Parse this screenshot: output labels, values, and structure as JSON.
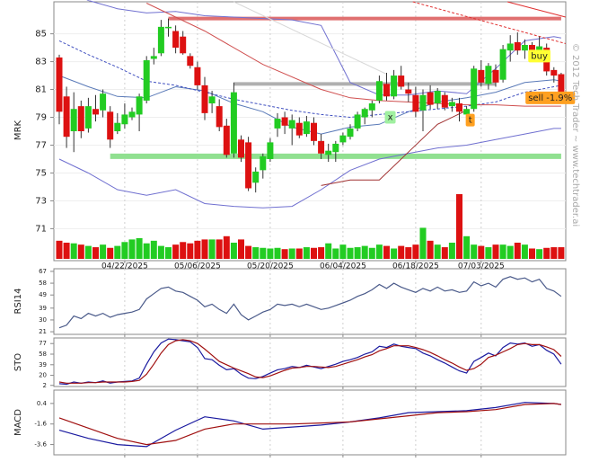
{
  "chart_data": [
    {
      "type": "candlestick",
      "axis_label": "MRK",
      "watermark": "© 2012 Tech Trader ~ www.techtrader.ai",
      "categories": [
        null,
        null,
        null,
        null,
        null,
        null,
        null,
        null,
        null,
        "04/22/2025",
        null,
        null,
        null,
        null,
        null,
        null,
        null,
        null,
        null,
        "05/06/2025",
        null,
        null,
        null,
        null,
        null,
        null,
        null,
        null,
        null,
        "05/20/2025",
        null,
        null,
        null,
        null,
        null,
        null,
        null,
        null,
        null,
        "06/04/2025",
        null,
        null,
        null,
        null,
        null,
        null,
        null,
        null,
        null,
        "06/18/2025",
        null,
        null,
        null,
        null,
        null,
        null,
        null,
        null,
        "07/03/2025",
        null,
        null,
        null,
        null,
        null,
        null,
        null,
        null,
        null,
        null,
        null
      ],
      "ohlc": [
        [
          83.3,
          83.5,
          78.5,
          79.4
        ],
        [
          80.5,
          81.2,
          76.8,
          77.6
        ],
        [
          78.0,
          80.8,
          76.5,
          79.6
        ],
        [
          79.8,
          80.2,
          77.5,
          78.0
        ],
        [
          78.2,
          80.4,
          77.9,
          79.8
        ],
        [
          79.6,
          80.6,
          78.7,
          79.2
        ],
        [
          79.5,
          81.0,
          79.0,
          80.7
        ],
        [
          79.4,
          79.8,
          76.8,
          77.4
        ],
        [
          78.0,
          79.3,
          77.8,
          78.6
        ],
        [
          78.5,
          80.0,
          78.2,
          79.2
        ],
        [
          79.0,
          79.7,
          78.8,
          79.4
        ],
        [
          79.2,
          80.7,
          78.0,
          80.5
        ],
        [
          80.2,
          83.4,
          80.0,
          83.1
        ],
        [
          83.2,
          84.0,
          82.8,
          83.4
        ],
        [
          83.6,
          86.0,
          83.4,
          85.5
        ],
        [
          85.4,
          86.1,
          84.8,
          85.5
        ],
        [
          85.2,
          85.6,
          83.6,
          84.0
        ],
        [
          84.8,
          85.2,
          83.5,
          83.6
        ],
        [
          83.4,
          83.6,
          82.5,
          82.7
        ],
        [
          82.6,
          83.0,
          81.0,
          81.3
        ],
        [
          81.3,
          81.9,
          78.8,
          79.3
        ],
        [
          80.0,
          80.9,
          79.3,
          80.5
        ],
        [
          79.8,
          80.3,
          78.0,
          78.3
        ],
        [
          78.4,
          78.9,
          76.1,
          76.3
        ],
        [
          76.4,
          81.5,
          76.1,
          80.8
        ],
        [
          77.4,
          77.7,
          75.8,
          76.1
        ],
        [
          77.2,
          77.6,
          73.7,
          73.9
        ],
        [
          74.3,
          75.4,
          73.6,
          75.1
        ],
        [
          75.2,
          76.4,
          74.6,
          76.2
        ],
        [
          76.0,
          77.5,
          75.8,
          77.2
        ],
        [
          78.2,
          79.3,
          77.6,
          78.9
        ],
        [
          79.0,
          79.4,
          77.8,
          78.4
        ],
        [
          78.2,
          79.2,
          77.0,
          78.8
        ],
        [
          78.6,
          79.0,
          77.5,
          77.7
        ],
        [
          77.8,
          79.1,
          77.6,
          78.7
        ],
        [
          78.6,
          79.0,
          77.0,
          77.3
        ],
        [
          77.3,
          77.8,
          76.0,
          76.4
        ],
        [
          76.3,
          77.1,
          75.8,
          76.6
        ],
        [
          76.5,
          77.3,
          75.8,
          77.1
        ],
        [
          77.2,
          77.9,
          77.0,
          77.7
        ],
        [
          77.6,
          78.5,
          77.4,
          78.2
        ],
        [
          78.2,
          79.4,
          78.0,
          79.2
        ],
        [
          79.0,
          79.7,
          78.5,
          79.6
        ],
        [
          79.5,
          80.2,
          79.0,
          80.0
        ],
        [
          80.2,
          82.0,
          80.0,
          81.6
        ],
        [
          81.4,
          82.2,
          80.2,
          80.5
        ],
        [
          80.5,
          82.4,
          80.3,
          82.0
        ],
        [
          82.0,
          82.7,
          81.0,
          81.2
        ],
        [
          81.0,
          81.5,
          80.1,
          80.7
        ],
        [
          80.6,
          81.2,
          79.0,
          79.4
        ],
        [
          79.5,
          81.0,
          78.0,
          80.6
        ],
        [
          80.8,
          81.3,
          79.6,
          79.9
        ],
        [
          80.0,
          81.1,
          79.6,
          80.9
        ],
        [
          80.6,
          80.8,
          79.5,
          79.7
        ],
        [
          79.8,
          80.4,
          79.4,
          80.1
        ],
        [
          80.0,
          80.4,
          78.7,
          79.4
        ],
        [
          79.2,
          79.8,
          78.7,
          79.6
        ],
        [
          79.6,
          82.7,
          79.4,
          82.5
        ],
        [
          82.4,
          83.1,
          81.2,
          81.5
        ],
        [
          81.4,
          82.9,
          81.0,
          82.7
        ],
        [
          82.4,
          82.8,
          81.2,
          81.5
        ],
        [
          81.7,
          84.2,
          81.5,
          83.9
        ],
        [
          83.8,
          84.9,
          83.0,
          84.3
        ],
        [
          84.4,
          85.1,
          83.5,
          83.8
        ],
        [
          83.8,
          84.6,
          83.2,
          84.2
        ],
        [
          84.2,
          84.4,
          83.0,
          83.3
        ],
        [
          83.5,
          84.8,
          83.3,
          84.1
        ],
        [
          84.0,
          84.3,
          82.0,
          82.3
        ],
        [
          82.4,
          82.6,
          81.5,
          82.0
        ],
        [
          82.1,
          82.2,
          80.4,
          80.6
        ]
      ],
      "up_color": "#22cc22",
      "down_color": "#dd1111",
      "volume": [
        28,
        25,
        24,
        22,
        20,
        18,
        22,
        17,
        20,
        26,
        30,
        32,
        24,
        28,
        20,
        18,
        22,
        26,
        24,
        28,
        30,
        30,
        30,
        35,
        25,
        30,
        20,
        18,
        17,
        16,
        17,
        15,
        16,
        16,
        18,
        17,
        18,
        24,
        16,
        22,
        17,
        18,
        20,
        17,
        22,
        20,
        16,
        20,
        18,
        22,
        48,
        28,
        22,
        18,
        25,
        100,
        35,
        22,
        20,
        18,
        22,
        22,
        20,
        25,
        22,
        16,
        15,
        17,
        18,
        18
      ],
      "volume_lim": [
        0,
        100
      ],
      "ylim": [
        68.7,
        87.3
      ],
      "yticks": [
        71,
        73,
        75,
        77,
        79,
        81,
        83,
        85
      ],
      "grid": true,
      "levels": [
        {
          "value": 86.1,
          "from": 15,
          "to": 69,
          "color": "#e07070"
        },
        {
          "value": 81.4,
          "from": 24,
          "to": 60,
          "color": "#b0b0b0"
        },
        {
          "value": 76.2,
          "from": 7,
          "to": 69,
          "color": "#90e090"
        }
      ],
      "overlays": [
        {
          "color": "#7070d0",
          "dash": false,
          "x": [
            0,
            4,
            8,
            12,
            16,
            20,
            24,
            28,
            32,
            36,
            40,
            44,
            48,
            52,
            56,
            60,
            64,
            68,
            69
          ],
          "values": [
            88.5,
            87.4,
            86.8,
            86.5,
            86.6,
            86.3,
            86.2,
            86.1,
            86.0,
            85.6,
            81.5,
            80.6,
            80.6,
            80.9,
            80.7,
            82.5,
            84.5,
            84.8,
            84.7
          ]
        },
        {
          "color": "#7070d0",
          "dash": false,
          "x": [
            0,
            4,
            8,
            12,
            16,
            20,
            24,
            28,
            32,
            36,
            40,
            44,
            48,
            52,
            56,
            60,
            64,
            68,
            69
          ],
          "values": [
            76.0,
            75.0,
            73.8,
            73.4,
            73.8,
            72.8,
            72.6,
            72.5,
            72.6,
            73.8,
            75.2,
            76.0,
            76.4,
            76.8,
            77.0,
            77.4,
            77.8,
            78.2,
            78.2
          ]
        },
        {
          "color": "#5a7ab8",
          "dash": false,
          "x": [
            0,
            4,
            8,
            12,
            16,
            20,
            24,
            28,
            32,
            36,
            40,
            44,
            48,
            52,
            56,
            60,
            64,
            68,
            69
          ],
          "values": [
            82.0,
            81.2,
            80.5,
            80.4,
            81.2,
            80.9,
            80.0,
            79.4,
            78.3,
            77.8,
            78.3,
            78.5,
            79.4,
            80.1,
            80.4,
            80.8,
            81.5,
            81.7,
            81.6
          ]
        },
        {
          "color": "#4050c0",
          "dash": true,
          "x": [
            0,
            4,
            8,
            12,
            16,
            20,
            24,
            28,
            32,
            36,
            40,
            44,
            48,
            52,
            56,
            60,
            64,
            68,
            69
          ],
          "values": [
            84.5,
            83.5,
            82.6,
            81.6,
            81.3,
            80.8,
            80.3,
            79.9,
            79.5,
            79.2,
            79.0,
            79.2,
            79.4,
            79.6,
            79.8,
            80.1,
            80.8,
            81.2,
            81.3
          ]
        },
        {
          "color": "#d05050",
          "dash": false,
          "x": [
            12,
            20,
            28,
            36,
            40,
            44,
            48,
            52,
            56,
            60,
            64,
            68,
            69
          ],
          "values": [
            87.2,
            85.2,
            82.8,
            81.0,
            80.4,
            80.2,
            80.1,
            80.0,
            79.9,
            79.9,
            79.8,
            79.8,
            79.8
          ]
        },
        {
          "color": "#a03030",
          "dash": false,
          "x": [
            36,
            40,
            44,
            48,
            52,
            56
          ],
          "values": [
            74.1,
            74.5,
            74.5,
            76.5,
            78.5,
            79.5
          ]
        },
        {
          "color": "#d8d8d8",
          "dash": false,
          "x": [
            24,
            45
          ],
          "values": [
            87.3,
            82.1
          ]
        },
        {
          "color": "#e03030",
          "dash": false,
          "x": [
            61.6,
            69.6
          ],
          "values": [
            87.3,
            86.2
          ]
        },
        {
          "color": "#e03030",
          "dash": true,
          "x": [
            48.6,
            69.6
          ],
          "values": [
            87.3,
            84.3
          ]
        }
      ],
      "annotations": [
        {
          "text": "buy",
          "x": 66,
          "y": 83.4,
          "color": "#ffff33"
        },
        {
          "text": "sell -1.9%",
          "x": 67.5,
          "y": 80.4,
          "color": "#ffa020"
        },
        {
          "text": "x",
          "x": 45.5,
          "y": 79.0,
          "color": "#a0f0a0"
        },
        {
          "text": "t",
          "x": 56.5,
          "y": 78.8,
          "color": "#ffa020"
        }
      ]
    },
    {
      "type": "line",
      "axis_label": "RSI14",
      "ylim": [
        19,
        69
      ],
      "yticks": [
        21,
        30,
        39,
        49,
        58,
        67
      ],
      "series": [
        {
          "color": "#4a5a8a",
          "values": [
            24,
            26,
            33,
            31,
            35,
            33,
            35,
            32,
            34,
            35,
            36,
            38,
            46,
            50,
            54,
            55,
            52,
            51,
            48,
            45,
            40,
            42,
            38,
            35,
            42,
            34,
            30,
            33,
            36,
            38,
            42,
            41,
            42,
            40,
            42,
            40,
            38,
            39,
            41,
            43,
            45,
            48,
            50,
            53,
            57,
            54,
            58,
            55,
            53,
            51,
            54,
            52,
            55,
            52,
            53,
            51,
            52,
            59,
            56,
            58,
            55,
            61,
            63,
            61,
            62,
            59,
            61,
            54,
            52,
            48
          ]
        }
      ]
    },
    {
      "type": "line",
      "axis_label": "STO",
      "ylim": [
        0,
        87
      ],
      "yticks": [
        2,
        20,
        39,
        58,
        77
      ],
      "series": [
        {
          "color": "#1a1aa0",
          "values": [
            5,
            4,
            8,
            6,
            8,
            7,
            10,
            6,
            8,
            9,
            10,
            15,
            40,
            62,
            78,
            85,
            84,
            82,
            80,
            70,
            50,
            48,
            38,
            30,
            32,
            22,
            15,
            14,
            18,
            24,
            30,
            32,
            36,
            34,
            38,
            35,
            32,
            36,
            40,
            45,
            48,
            52,
            58,
            62,
            72,
            70,
            76,
            72,
            70,
            68,
            60,
            55,
            48,
            42,
            35,
            28,
            24,
            45,
            52,
            60,
            55,
            70,
            78,
            76,
            78,
            72,
            75,
            65,
            58,
            40
          ]
        },
        {
          "color": "#a01010",
          "values": [
            8,
            6,
            6,
            6,
            7,
            7,
            8,
            8,
            8,
            8,
            9,
            11,
            22,
            40,
            60,
            75,
            82,
            84,
            82,
            77,
            67,
            56,
            45,
            39,
            33,
            28,
            23,
            17,
            16,
            19,
            24,
            29,
            33,
            34,
            36,
            36,
            35,
            34,
            36,
            40,
            44,
            48,
            53,
            57,
            64,
            68,
            73,
            73,
            73,
            70,
            66,
            61,
            55,
            48,
            42,
            35,
            29,
            32,
            40,
            52,
            56,
            62,
            68,
            75,
            77,
            75,
            75,
            71,
            66,
            54
          ]
        }
      ]
    },
    {
      "type": "line",
      "axis_label": "MACD",
      "ylim": [
        -4.6,
        1.7
      ],
      "yticks": [
        -3.6,
        -1.6,
        0.4
      ],
      "series": [
        {
          "color": "#1a1aa0",
          "x": [
            0,
            4,
            8,
            12,
            16,
            20,
            24,
            28,
            32,
            36,
            40,
            44,
            48,
            52,
            56,
            60,
            64,
            68,
            69
          ],
          "values": [
            -2.2,
            -3.0,
            -3.6,
            -3.8,
            -2.2,
            -0.9,
            -1.3,
            -2.1,
            -1.9,
            -1.7,
            -1.4,
            -1.0,
            -0.5,
            -0.4,
            -0.3,
            0.0,
            0.5,
            0.4,
            0.3
          ]
        },
        {
          "color": "#a01010",
          "x": [
            0,
            4,
            8,
            12,
            16,
            20,
            24,
            28,
            32,
            36,
            40,
            44,
            48,
            52,
            56,
            60,
            64,
            68,
            69
          ],
          "values": [
            -1.0,
            -2.0,
            -3.0,
            -3.6,
            -3.2,
            -2.1,
            -1.6,
            -1.6,
            -1.6,
            -1.5,
            -1.4,
            -1.1,
            -0.8,
            -0.5,
            -0.4,
            -0.2,
            0.3,
            0.4,
            0.3
          ]
        }
      ]
    }
  ]
}
